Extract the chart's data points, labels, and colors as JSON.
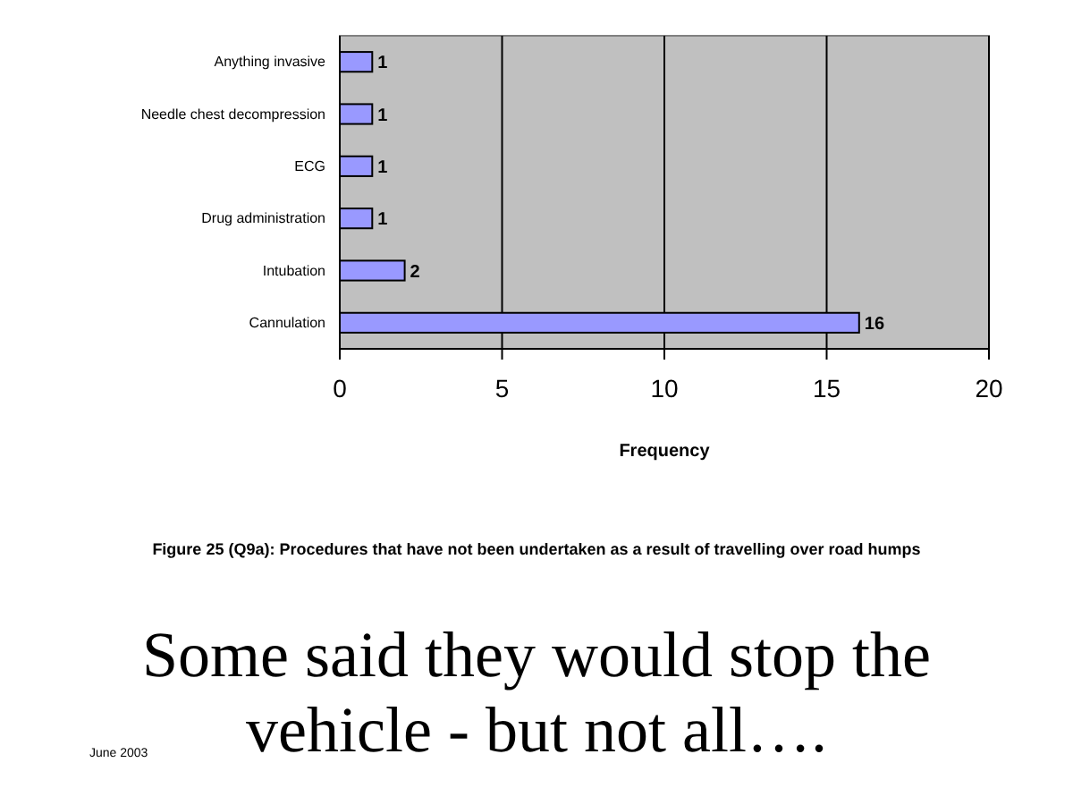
{
  "chart_data": {
    "type": "bar",
    "orientation": "horizontal",
    "title": "Figure 25 (Q9a):  Procedures that have not been undertaken as a result of travelling over road humps",
    "xlabel": "Frequency",
    "categories": [
      "Anything invasive",
      "Needle chest decompression",
      "ECG",
      "Drug administration",
      "Intubation",
      "Cannulation"
    ],
    "values": [
      1,
      1,
      1,
      1,
      2,
      16
    ],
    "color": "#9999ff",
    "xlim": [
      0,
      20
    ],
    "xticks": [
      0,
      5,
      10,
      15,
      20
    ],
    "grid": "x",
    "data_labels": true,
    "annotations": [
      "Some said they would stop the vehicle - but not all….",
      "June 2003"
    ]
  }
}
